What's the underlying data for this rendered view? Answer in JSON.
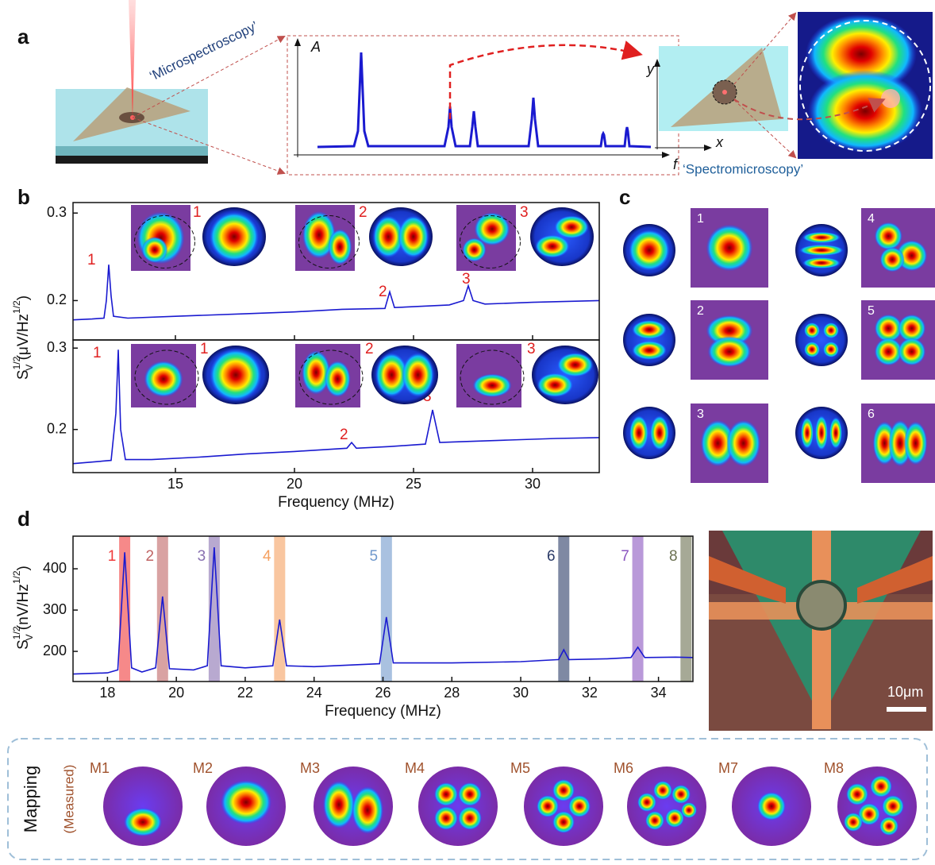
{
  "panels": [
    "a",
    "b",
    "c",
    "d"
  ],
  "panel_a": {
    "micro": "‘Microspectroscopy’",
    "spectro": "‘Spectromicroscopy’",
    "amp": "A",
    "freq": "f",
    "x": "x",
    "y": "y"
  },
  "panel_c": {
    "labels": [
      "1",
      "2",
      "3",
      "4",
      "5",
      "6"
    ]
  },
  "scale_bar": "10μm",
  "mapping": {
    "title": "Mapping",
    "subtitle": "(Measured)",
    "labels": [
      "M1",
      "M2",
      "M3",
      "M4",
      "M5",
      "M6",
      "M7",
      "M8"
    ]
  },
  "chart_data": [
    {
      "type": "line",
      "ylabel": {
        "text": "S",
        "sub": "V",
        "sup": "1/2",
        "unit": " (μV/Hz",
        "unit_sup": "1/2",
        "close": ")"
      },
      "annotations": [
        "1",
        "2",
        "3"
      ],
      "inset_labels": [
        "1",
        "2",
        "3"
      ],
      "x": [
        10.7,
        11.5,
        12.0,
        12.1,
        12.2,
        12.3,
        12.4,
        13,
        15,
        18,
        20,
        22,
        23.8,
        24.0,
        24.2,
        25,
        26.5,
        27.1,
        27.3,
        27.5,
        28,
        30,
        32.8
      ],
      "series": [
        {
          "color": "#1a1ad0",
          "values": [
            0.178,
            0.179,
            0.18,
            0.2,
            0.241,
            0.205,
            0.182,
            0.18,
            0.182,
            0.185,
            0.187,
            0.19,
            0.191,
            0.21,
            0.192,
            0.193,
            0.195,
            0.2,
            0.217,
            0.2,
            0.196,
            0.198,
            0.2
          ]
        }
      ],
      "xlim": [
        10.7,
        32.8
      ],
      "ylim": [
        0.155,
        0.312
      ],
      "yticks": [
        0.2,
        0.3
      ]
    },
    {
      "type": "line",
      "annotations": [
        "1",
        "2",
        "3"
      ],
      "inset_labels": [
        "1",
        "2",
        "3"
      ],
      "x": [
        10.7,
        11.5,
        12.3,
        12.5,
        12.6,
        12.7,
        12.9,
        14,
        16,
        18,
        20,
        22.2,
        22.4,
        22.6,
        24,
        25.5,
        25.8,
        26.1,
        27,
        29,
        31,
        32.8
      ],
      "series": [
        {
          "color": "#1a1ad0",
          "values": [
            0.158,
            0.16,
            0.162,
            0.22,
            0.298,
            0.2,
            0.163,
            0.163,
            0.166,
            0.17,
            0.173,
            0.177,
            0.184,
            0.177,
            0.179,
            0.182,
            0.224,
            0.184,
            0.185,
            0.187,
            0.189,
            0.19
          ]
        }
      ],
      "xlim": [
        10.7,
        32.8
      ],
      "ylim": [
        0.147,
        0.31
      ],
      "yticks": [
        0.2,
        0.3
      ],
      "xticks": [
        15,
        20,
        25,
        30
      ],
      "xlabel": "Frequency (MHz)"
    },
    {
      "type": "line",
      "ylabel": {
        "text": "S",
        "sub": "V",
        "sup": "1/2",
        "unit": " (nV/Hz",
        "unit_sup": "1/2",
        "close": ")"
      },
      "x": [
        17,
        18,
        18.3,
        18.5,
        18.7,
        19,
        19.4,
        19.6,
        19.8,
        20.5,
        20.9,
        21.1,
        21.3,
        22,
        22.8,
        23.0,
        23.2,
        24,
        25.9,
        26.1,
        26.3,
        28,
        30,
        31.1,
        31.25,
        31.4,
        32.5,
        33.2,
        33.4,
        33.6,
        34.5,
        35
      ],
      "series": [
        {
          "color": "#1a1ad0",
          "values": [
            145,
            148,
            155,
            440,
            160,
            150,
            160,
            333,
            158,
            155,
            165,
            452,
            165,
            160,
            165,
            277,
            165,
            163,
            170,
            283,
            172,
            172,
            175,
            180,
            204,
            180,
            182,
            185,
            210,
            185,
            186,
            185
          ]
        }
      ],
      "modes": [
        {
          "label": "1",
          "freq": 18.5,
          "color": "#f03a3a"
        },
        {
          "label": "2",
          "freq": 19.6,
          "color": "#c06464"
        },
        {
          "label": "3",
          "freq": 21.1,
          "color": "#8870b0"
        },
        {
          "label": "4",
          "freq": 23.0,
          "color": "#f5a060"
        },
        {
          "label": "5",
          "freq": 26.1,
          "color": "#6f98cc"
        },
        {
          "label": "6",
          "freq": 31.25,
          "color": "#2a3a66"
        },
        {
          "label": "7",
          "freq": 33.4,
          "color": "#8a55c0"
        },
        {
          "label": "8",
          "freq": 34.8,
          "color": "#6a7050"
        }
      ],
      "xlim": [
        17,
        35
      ],
      "ylim": [
        127,
        479
      ],
      "yticks": [
        200,
        300,
        400
      ],
      "xticks": [
        18,
        20,
        22,
        24,
        26,
        28,
        30,
        32,
        34
      ],
      "xlabel": "Frequency (MHz)"
    }
  ]
}
